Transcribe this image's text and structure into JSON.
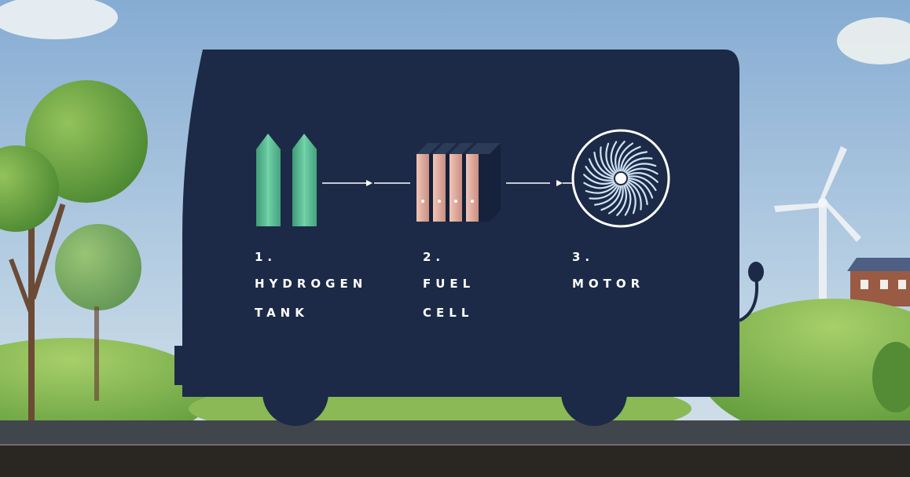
{
  "steps": [
    {
      "number": "1.",
      "line1": "HYDROGEN",
      "line2": "TANK",
      "icon": "hydrogen-tank-icon"
    },
    {
      "number": "2.",
      "line1": "FUEL",
      "line2": "CELL",
      "icon": "fuel-cell-icon"
    },
    {
      "number": "3.",
      "line1": "MOTOR",
      "line2": "",
      "icon": "motor-icon"
    }
  ],
  "colors": {
    "bus_body": "#1c2a47",
    "tank": "#5fbf96",
    "fuel_cell_plate": "#e6b3a6",
    "sky": "#a9c6de",
    "grass": "#7fae4e",
    "road": "#3d4145",
    "text": "#ffffff"
  }
}
